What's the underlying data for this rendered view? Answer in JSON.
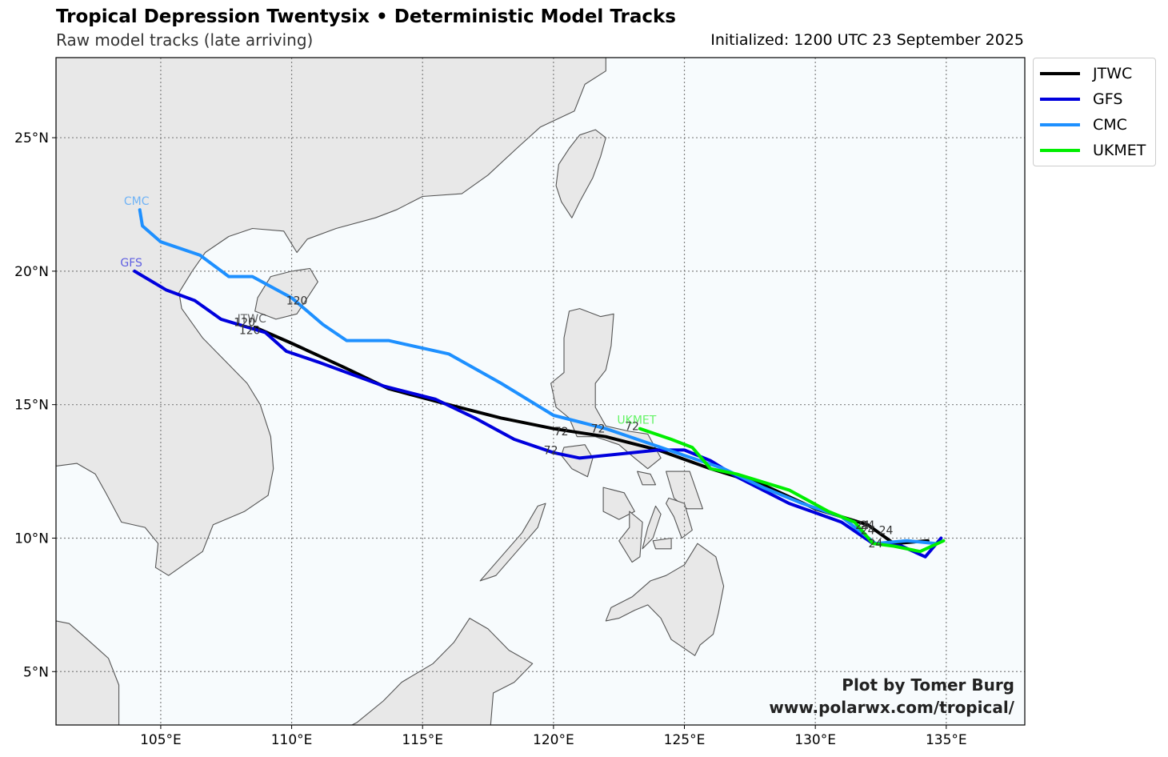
{
  "title": "Tropical Depression Twentysix • Deterministic Model Tracks",
  "subtitle": "Raw model tracks (late arriving)",
  "initialized": "Initialized: 1200 UTC 23 September 2025",
  "credit": {
    "line1": "Plot by Tomer Burg",
    "line2": "www.polarwx.com/tropical/"
  },
  "colors": {
    "ocean": "#f7fbfd",
    "land": "#e8e8e8",
    "coast": "#555555",
    "grid": "#808080"
  },
  "legend": [
    {
      "name": "JTWC",
      "color": "#000000"
    },
    {
      "name": "GFS",
      "color": "#0000dd"
    },
    {
      "name": "CMC",
      "color": "#1e90ff"
    },
    {
      "name": "UKMET",
      "color": "#00ee00"
    }
  ],
  "map": {
    "projection": "plate-carree",
    "lon_range": [
      101,
      138
    ],
    "lat_range": [
      3,
      28
    ],
    "lon_ticks": [
      {
        "value": 105,
        "label": "105°E"
      },
      {
        "value": 110,
        "label": "110°E"
      },
      {
        "value": 115,
        "label": "115°E"
      },
      {
        "value": 120,
        "label": "120°E"
      },
      {
        "value": 125,
        "label": "125°E"
      },
      {
        "value": 130,
        "label": "130°E"
      },
      {
        "value": 135,
        "label": "135°E"
      }
    ],
    "lat_ticks": [
      {
        "value": 5,
        "label": "5°N"
      },
      {
        "value": 10,
        "label": "10°N"
      },
      {
        "value": 15,
        "label": "15°N"
      },
      {
        "value": 20,
        "label": "20°N"
      },
      {
        "value": 25,
        "label": "25°N"
      }
    ],
    "grid": true,
    "legend_position": "outside-top-right"
  },
  "tracks": [
    {
      "name": "JTWC",
      "color": "#000000",
      "end_label": "JTWC",
      "points": [
        [
          134.3,
          9.9
        ],
        [
          133.0,
          9.8
        ],
        [
          132.0,
          10.5
        ],
        [
          130.0,
          11.1
        ],
        [
          128.0,
          12.0
        ],
        [
          126.0,
          12.6
        ],
        [
          124.0,
          13.3
        ],
        [
          122.0,
          13.8
        ],
        [
          120.0,
          14.1
        ],
        [
          118.0,
          14.5
        ],
        [
          116.0,
          15.0
        ],
        [
          113.7,
          15.6
        ],
        [
          112.0,
          16.4
        ],
        [
          110.0,
          17.3
        ],
        [
          108.6,
          17.9
        ]
      ],
      "hour_labels": [
        {
          "text": "24",
          "lon": 132.0,
          "lat": 10.5
        },
        {
          "text": "72",
          "lon": 120.3,
          "lat": 14.0
        },
        {
          "text": "120",
          "lon": 108.2,
          "lat": 18.1
        }
      ]
    },
    {
      "name": "GFS",
      "color": "#0000dd",
      "end_label": "GFS",
      "points": [
        [
          134.8,
          10.0
        ],
        [
          134.2,
          9.3
        ],
        [
          133.3,
          9.7
        ],
        [
          132.2,
          9.8
        ],
        [
          131.0,
          10.6
        ],
        [
          129.0,
          11.3
        ],
        [
          127.0,
          12.3
        ],
        [
          126.0,
          12.9
        ],
        [
          125.0,
          13.3
        ],
        [
          124.0,
          13.3
        ],
        [
          123.0,
          13.2
        ],
        [
          121.0,
          13.0
        ],
        [
          120.0,
          13.2
        ],
        [
          118.5,
          13.7
        ],
        [
          117.0,
          14.5
        ],
        [
          115.5,
          15.2
        ],
        [
          113.5,
          15.7
        ],
        [
          111.0,
          16.6
        ],
        [
          109.8,
          17.0
        ],
        [
          109.0,
          17.7
        ],
        [
          107.3,
          18.2
        ],
        [
          106.3,
          18.9
        ],
        [
          105.2,
          19.3
        ],
        [
          104.0,
          20.0
        ]
      ],
      "hour_labels": [
        {
          "text": "24",
          "lon": 132.0,
          "lat": 10.3
        },
        {
          "text": "72",
          "lon": 119.9,
          "lat": 13.3
        },
        {
          "text": "120",
          "lon": 108.4,
          "lat": 17.8
        }
      ]
    },
    {
      "name": "CMC",
      "color": "#1e90ff",
      "end_label": "CMC",
      "points": [
        [
          134.6,
          9.8
        ],
        [
          133.5,
          9.9
        ],
        [
          132.3,
          9.8
        ],
        [
          131.0,
          10.8
        ],
        [
          129.5,
          11.3
        ],
        [
          128.0,
          11.9
        ],
        [
          126.5,
          12.6
        ],
        [
          125.0,
          13.1
        ],
        [
          123.5,
          13.6
        ],
        [
          122.0,
          14.1
        ],
        [
          120.0,
          14.6
        ],
        [
          118.0,
          15.8
        ],
        [
          116.0,
          16.9
        ],
        [
          113.7,
          17.4
        ],
        [
          112.1,
          17.4
        ],
        [
          111.2,
          18.0
        ],
        [
          110.0,
          19.0
        ],
        [
          108.5,
          19.8
        ],
        [
          107.6,
          19.8
        ],
        [
          106.5,
          20.6
        ],
        [
          105.0,
          21.1
        ],
        [
          104.3,
          21.7
        ],
        [
          104.2,
          22.3
        ]
      ],
      "hour_labels": [
        {
          "text": "24",
          "lon": 131.8,
          "lat": 10.5
        },
        {
          "text": "72",
          "lon": 121.7,
          "lat": 14.1
        },
        {
          "text": "120",
          "lon": 110.2,
          "lat": 18.9
        }
      ]
    },
    {
      "name": "UKMET",
      "color": "#00ee00",
      "end_label": "UKMET",
      "points": [
        [
          134.9,
          9.9
        ],
        [
          134.0,
          9.5
        ],
        [
          133.0,
          9.7
        ],
        [
          132.2,
          9.8
        ],
        [
          131.5,
          10.6
        ],
        [
          130.5,
          11.0
        ],
        [
          129.0,
          11.8
        ],
        [
          127.0,
          12.4
        ],
        [
          126.0,
          12.6
        ],
        [
          125.3,
          13.4
        ],
        [
          124.5,
          13.7
        ],
        [
          123.3,
          14.1
        ]
      ],
      "hour_labels": [
        {
          "text": "24",
          "lon": 132.7,
          "lat": 10.3
        },
        {
          "text": "24",
          "lon": 132.3,
          "lat": 9.8
        },
        {
          "text": "72",
          "lon": 123.0,
          "lat": 14.2
        }
      ]
    }
  ],
  "land": [
    {
      "name": "asia-mainland",
      "points": [
        [
          101,
          28
        ],
        [
          122.0,
          28
        ],
        [
          122.0,
          27.5
        ],
        [
          121.2,
          27.0
        ],
        [
          120.8,
          26.0
        ],
        [
          119.5,
          25.4
        ],
        [
          118.6,
          24.6
        ],
        [
          117.5,
          23.6
        ],
        [
          116.5,
          22.9
        ],
        [
          115.0,
          22.8
        ],
        [
          114.0,
          22.3
        ],
        [
          113.2,
          22.0
        ],
        [
          111.7,
          21.6
        ],
        [
          110.6,
          21.2
        ],
        [
          110.2,
          20.7
        ],
        [
          109.7,
          21.5
        ],
        [
          108.5,
          21.6
        ],
        [
          107.6,
          21.3
        ],
        [
          106.7,
          20.7
        ],
        [
          106.2,
          20.0
        ],
        [
          105.7,
          19.2
        ],
        [
          105.8,
          18.6
        ],
        [
          106.6,
          17.5
        ],
        [
          107.4,
          16.7
        ],
        [
          108.3,
          15.8
        ],
        [
          108.8,
          15.0
        ],
        [
          109.2,
          13.8
        ],
        [
          109.3,
          12.6
        ],
        [
          109.1,
          11.6
        ],
        [
          108.2,
          11.0
        ],
        [
          107.0,
          10.5
        ],
        [
          106.6,
          9.5
        ],
        [
          105.3,
          8.6
        ],
        [
          104.8,
          8.9
        ],
        [
          104.9,
          9.8
        ],
        [
          104.4,
          10.4
        ],
        [
          103.5,
          10.6
        ],
        [
          102.9,
          11.7
        ],
        [
          102.5,
          12.4
        ],
        [
          101.8,
          12.8
        ],
        [
          101.0,
          12.7
        ]
      ]
    },
    {
      "name": "malay-peninsula",
      "points": [
        [
          101.0,
          6.9
        ],
        [
          101.5,
          6.8
        ],
        [
          102.2,
          6.2
        ],
        [
          103.0,
          5.5
        ],
        [
          103.4,
          4.5
        ],
        [
          103.4,
          3.0
        ],
        [
          101,
          3.0
        ]
      ]
    },
    {
      "name": "borneo",
      "points": [
        [
          108.7,
          3.0
        ],
        [
          110.5,
          1.8
        ],
        [
          111.3,
          2.5
        ],
        [
          112.5,
          3.1
        ],
        [
          113.5,
          3.9
        ],
        [
          114.2,
          4.6
        ],
        [
          115.4,
          5.3
        ],
        [
          116.2,
          6.1
        ],
        [
          116.8,
          7.0
        ],
        [
          117.5,
          6.6
        ],
        [
          118.3,
          5.8
        ],
        [
          119.2,
          5.3
        ],
        [
          118.5,
          4.6
        ],
        [
          117.7,
          4.2
        ],
        [
          117.6,
          3.0
        ]
      ]
    },
    {
      "name": "hainan",
      "points": [
        [
          108.7,
          19.0
        ],
        [
          108.6,
          18.5
        ],
        [
          109.4,
          18.2
        ],
        [
          110.2,
          18.4
        ],
        [
          111.0,
          19.6
        ],
        [
          110.7,
          20.1
        ],
        [
          110.0,
          20.0
        ],
        [
          109.2,
          19.8
        ]
      ]
    },
    {
      "name": "taiwan",
      "points": [
        [
          121.0,
          25.1
        ],
        [
          121.6,
          25.3
        ],
        [
          122.0,
          25.0
        ],
        [
          121.8,
          24.3
        ],
        [
          121.5,
          23.5
        ],
        [
          121.0,
          22.6
        ],
        [
          120.7,
          22.0
        ],
        [
          120.3,
          22.6
        ],
        [
          120.1,
          23.2
        ],
        [
          120.2,
          24.0
        ],
        [
          120.6,
          24.6
        ]
      ]
    },
    {
      "name": "luzon",
      "points": [
        [
          120.6,
          18.5
        ],
        [
          121.0,
          18.6
        ],
        [
          121.8,
          18.3
        ],
        [
          122.3,
          18.4
        ],
        [
          122.2,
          17.2
        ],
        [
          122.0,
          16.3
        ],
        [
          121.6,
          15.8
        ],
        [
          121.6,
          14.9
        ],
        [
          122.0,
          14.2
        ],
        [
          122.9,
          14.0
        ],
        [
          123.6,
          13.9
        ],
        [
          124.1,
          13.0
        ],
        [
          123.6,
          12.6
        ],
        [
          123.1,
          13.0
        ],
        [
          122.5,
          13.5
        ],
        [
          121.6,
          13.8
        ],
        [
          120.9,
          13.8
        ],
        [
          120.6,
          14.5
        ],
        [
          120.1,
          14.9
        ],
        [
          119.9,
          15.8
        ],
        [
          120.4,
          16.2
        ],
        [
          120.4,
          17.5
        ]
      ]
    },
    {
      "name": "mindoro",
      "points": [
        [
          120.4,
          13.4
        ],
        [
          121.2,
          13.5
        ],
        [
          121.5,
          13.0
        ],
        [
          121.3,
          12.3
        ],
        [
          120.7,
          12.6
        ],
        [
          120.3,
          13.1
        ]
      ]
    },
    {
      "name": "samar",
      "points": [
        [
          124.3,
          12.5
        ],
        [
          125.2,
          12.5
        ],
        [
          125.7,
          11.1
        ],
        [
          125.1,
          11.1
        ],
        [
          124.6,
          11.5
        ]
      ]
    },
    {
      "name": "leyte",
      "points": [
        [
          124.4,
          11.5
        ],
        [
          125.0,
          11.3
        ],
        [
          125.3,
          10.3
        ],
        [
          124.9,
          10.0
        ],
        [
          124.6,
          10.8
        ],
        [
          124.3,
          11.3
        ]
      ]
    },
    {
      "name": "panay",
      "points": [
        [
          121.9,
          11.9
        ],
        [
          122.7,
          11.7
        ],
        [
          123.1,
          11.0
        ],
        [
          122.5,
          10.7
        ],
        [
          121.9,
          11.0
        ]
      ]
    },
    {
      "name": "negros",
      "points": [
        [
          122.9,
          11.0
        ],
        [
          123.4,
          10.6
        ],
        [
          123.3,
          9.3
        ],
        [
          123.0,
          9.1
        ],
        [
          122.5,
          9.9
        ],
        [
          122.9,
          10.4
        ]
      ]
    },
    {
      "name": "cebu",
      "points": [
        [
          123.9,
          11.2
        ],
        [
          124.1,
          10.9
        ],
        [
          123.8,
          10.0
        ],
        [
          123.4,
          9.6
        ],
        [
          123.6,
          10.4
        ]
      ]
    },
    {
      "name": "bohol",
      "points": [
        [
          123.8,
          9.9
        ],
        [
          124.5,
          10.0
        ],
        [
          124.5,
          9.6
        ],
        [
          123.9,
          9.6
        ]
      ]
    },
    {
      "name": "palawan",
      "points": [
        [
          117.2,
          8.4
        ],
        [
          117.8,
          8.6
        ],
        [
          118.6,
          9.5
        ],
        [
          119.4,
          10.4
        ],
        [
          119.7,
          11.3
        ],
        [
          119.4,
          11.2
        ],
        [
          118.8,
          10.2
        ],
        [
          118.0,
          9.3
        ]
      ]
    },
    {
      "name": "mindanao",
      "points": [
        [
          122.0,
          6.9
        ],
        [
          122.2,
          7.4
        ],
        [
          123.0,
          7.8
        ],
        [
          123.7,
          8.4
        ],
        [
          124.3,
          8.6
        ],
        [
          125.0,
          9.0
        ],
        [
          125.5,
          9.8
        ],
        [
          126.2,
          9.3
        ],
        [
          126.5,
          8.2
        ],
        [
          126.3,
          7.2
        ],
        [
          126.1,
          6.4
        ],
        [
          125.6,
          6.0
        ],
        [
          125.4,
          5.6
        ],
        [
          124.5,
          6.2
        ],
        [
          124.1,
          7.0
        ],
        [
          123.6,
          7.5
        ],
        [
          123.1,
          7.3
        ],
        [
          122.5,
          7.0
        ]
      ]
    },
    {
      "name": "masbate",
      "points": [
        [
          123.2,
          12.5
        ],
        [
          123.7,
          12.4
        ],
        [
          123.9,
          12.0
        ],
        [
          123.4,
          12.0
        ]
      ]
    }
  ]
}
